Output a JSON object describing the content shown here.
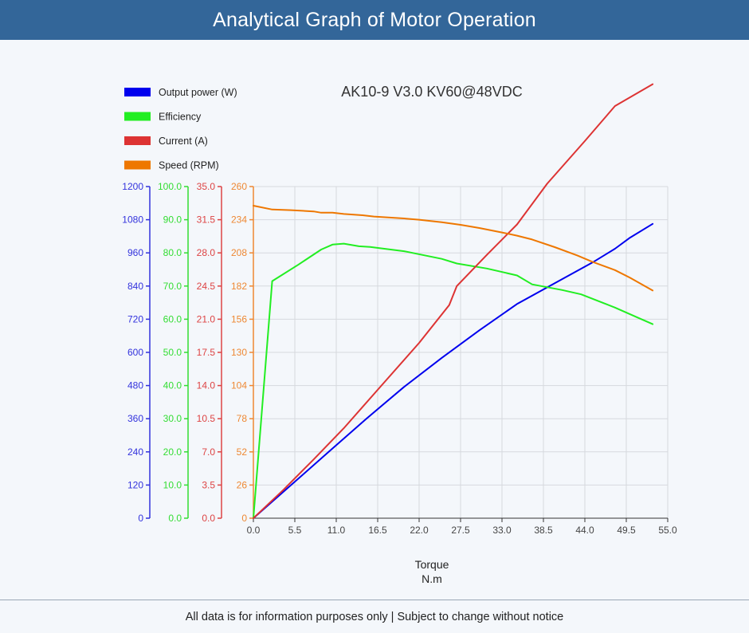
{
  "header": {
    "title": "Analytical Graph of Motor Operation"
  },
  "footer": {
    "note": "All data is for information purposes only | Subject to change without notice"
  },
  "chart_data": {
    "type": "line",
    "title": "AK10-9 V3.0 KV60@48VDC",
    "xlabel": "Torque",
    "xunit": "N.m",
    "xlim": [
      0,
      55
    ],
    "xticks": [
      "0.0",
      "5.5",
      "11.0",
      "16.5",
      "22.0",
      "27.5",
      "33.0",
      "38.5",
      "44.0",
      "49.5",
      "55.0"
    ],
    "grid": true,
    "legend_position": "top-left",
    "y_axes": [
      {
        "id": "power",
        "color": "#3333dd",
        "range": [
          0,
          1200
        ],
        "ticks": [
          "0",
          "120",
          "240",
          "360",
          "480",
          "600",
          "720",
          "840",
          "960",
          "1080",
          "1200"
        ]
      },
      {
        "id": "efficiency",
        "color": "#33dd33",
        "range": [
          0,
          100
        ],
        "ticks": [
          "0.0",
          "10.0",
          "20.0",
          "30.0",
          "40.0",
          "50.0",
          "60.0",
          "70.0",
          "80.0",
          "90.0",
          "100.0"
        ]
      },
      {
        "id": "current",
        "color": "#dd4444",
        "range": [
          0,
          35
        ],
        "ticks": [
          "0.0",
          "3.5",
          "7.0",
          "10.5",
          "14.0",
          "17.5",
          "21.0",
          "24.5",
          "28.0",
          "31.5",
          "35.0"
        ]
      },
      {
        "id": "speed",
        "color": "#ee8833",
        "range": [
          0,
          260
        ],
        "ticks": [
          "0",
          "26",
          "52",
          "78",
          "104",
          "130",
          "156",
          "182",
          "208",
          "234",
          "260"
        ]
      }
    ],
    "series": [
      {
        "name": "Output power (W)",
        "axis": "power",
        "color": "#0000ee",
        "x": [
          0,
          5,
          10,
          15,
          20,
          25,
          30,
          35,
          40,
          45,
          48,
          50,
          53
        ],
        "y": [
          0,
          120,
          240,
          360,
          475,
          580,
          680,
          775,
          850,
          925,
          975,
          1015,
          1065
        ]
      },
      {
        "name": "Efficiency",
        "axis": "efficiency",
        "color": "#22ee22",
        "x": [
          0,
          2.5,
          6,
          9,
          10.5,
          12,
          14,
          15.5,
          20,
          25,
          27,
          31,
          35,
          37,
          41,
          43.5,
          48,
          51,
          53
        ],
        "y": [
          0,
          71.5,
          76.5,
          81,
          82.5,
          82.8,
          82,
          81.8,
          80.5,
          78.2,
          76.8,
          75.3,
          73.2,
          70.5,
          68.8,
          67.5,
          63.5,
          60.5,
          58.5
        ]
      },
      {
        "name": "Current (A)",
        "axis": "current",
        "color": "#dd3333",
        "x": [
          0,
          4,
          8,
          12,
          17,
          22,
          26,
          27,
          31,
          35,
          39,
          44,
          48,
          53
        ],
        "y": [
          0,
          3,
          6.2,
          9.5,
          14,
          18.5,
          22.5,
          24.5,
          27.8,
          31,
          35.3,
          39.8,
          43.5,
          45.8
        ]
      },
      {
        "name": "Speed (RPM)",
        "axis": "speed",
        "color": "#ee7700",
        "x": [
          0,
          2.5,
          5,
          8,
          9,
          10.5,
          12,
          14.5,
          16,
          20,
          22,
          25,
          27.5,
          30,
          33,
          35,
          37,
          40,
          43,
          45,
          48,
          50,
          53
        ],
        "y": [
          245,
          242,
          241.5,
          240.5,
          239.5,
          239.5,
          238.5,
          237.5,
          236.5,
          235,
          234,
          232,
          230,
          227.5,
          224,
          221.5,
          218.5,
          212.5,
          206,
          201,
          194.5,
          188.5,
          178.5
        ]
      }
    ]
  }
}
